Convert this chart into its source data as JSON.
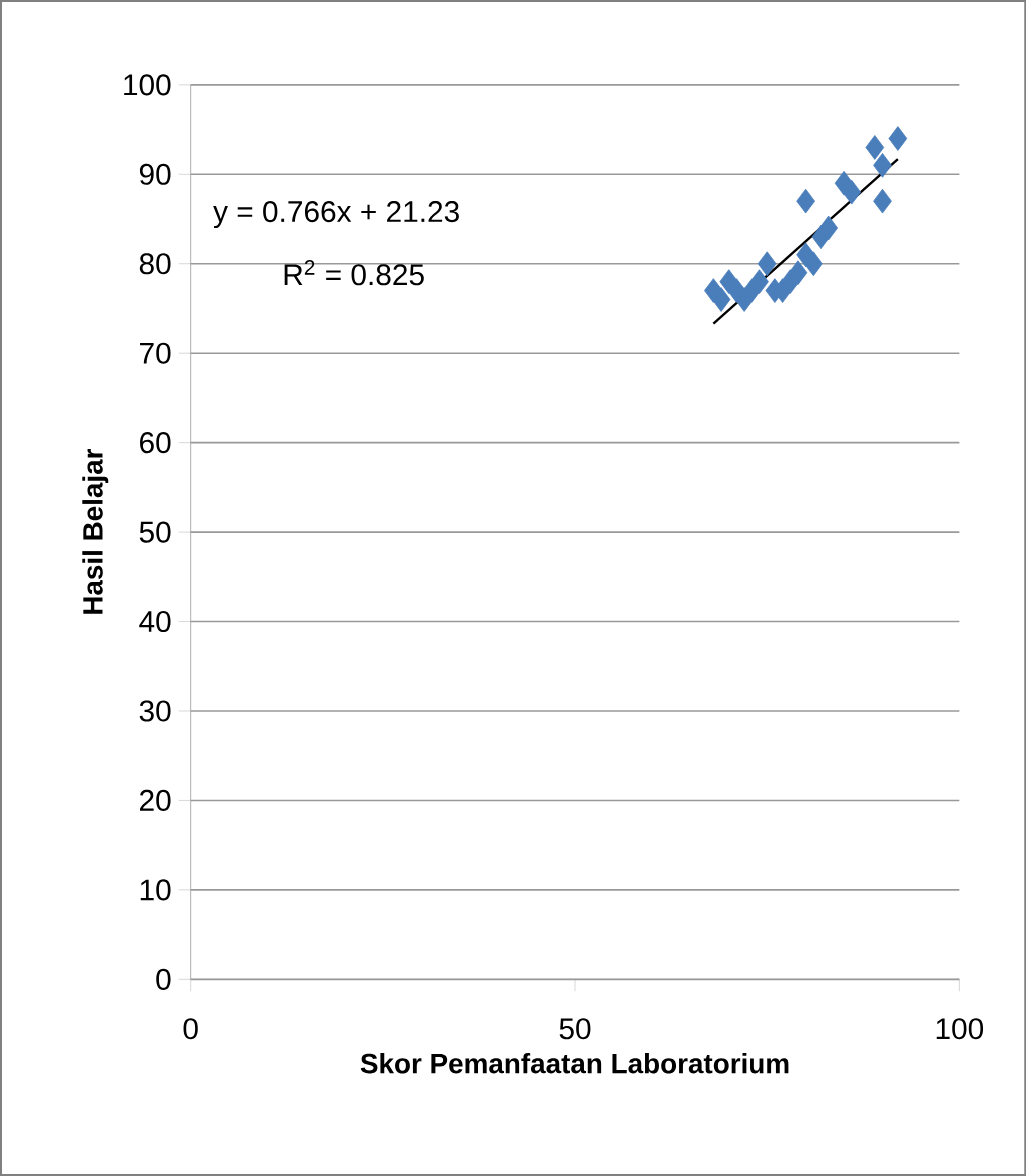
{
  "chart_data": {
    "type": "scatter",
    "xlabel": "Skor Pemanfaatan Laboratorium",
    "ylabel": "Hasil Belajar",
    "xlim": [
      0,
      100
    ],
    "xticks": [
      0,
      50,
      100
    ],
    "ylim": [
      0,
      100
    ],
    "yticks": [
      0,
      10,
      20,
      30,
      40,
      50,
      60,
      70,
      80,
      90,
      100
    ],
    "grid": "y",
    "series": [
      {
        "marker": "diamond",
        "color": "#4a7ebb",
        "x": [
          68,
          69,
          70,
          71,
          72,
          73,
          74,
          75,
          76,
          77,
          78,
          79,
          80,
          81,
          80,
          82,
          83,
          85,
          86,
          89,
          90,
          90,
          92
        ],
        "values": [
          77,
          76,
          78,
          77,
          76,
          77,
          78,
          80,
          77,
          77,
          78,
          79,
          81,
          80,
          87,
          83,
          84,
          89,
          88,
          93,
          87,
          91,
          94
        ]
      },
      {
        "type": "line",
        "marker": "none",
        "color": "#000000",
        "x": [
          68,
          92
        ],
        "values": [
          73.3,
          91.7
        ]
      }
    ],
    "annotations": [
      "y = 0.766x + 21.23",
      "R$^{2}$ = 0.825"
    ]
  }
}
